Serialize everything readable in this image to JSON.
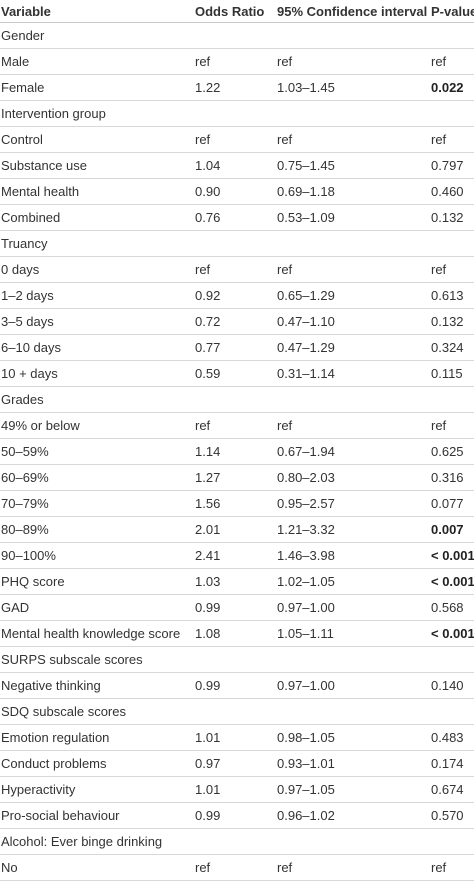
{
  "headers": {
    "variable": "Variable",
    "odds_ratio": "Odds Ratio",
    "ci": "95% Confidence interval",
    "p": "P-value"
  },
  "rows": [
    {
      "type": "section",
      "label": "Gender"
    },
    {
      "type": "data",
      "label": "Male",
      "or": "ref",
      "ci": "ref",
      "p": "ref",
      "p_bold": false
    },
    {
      "type": "data",
      "label": "Female",
      "or": "1.22",
      "ci": "1.03–1.45",
      "p": "0.022",
      "p_bold": true
    },
    {
      "type": "section",
      "label": "Intervention group"
    },
    {
      "type": "data",
      "label": "Control",
      "or": "ref",
      "ci": "ref",
      "p": "ref",
      "p_bold": false
    },
    {
      "type": "data",
      "label": "Substance use",
      "or": "1.04",
      "ci": "0.75–1.45",
      "p": "0.797",
      "p_bold": false
    },
    {
      "type": "data",
      "label": "Mental health",
      "or": "0.90",
      "ci": "0.69–1.18",
      "p": "0.460",
      "p_bold": false
    },
    {
      "type": "data",
      "label": "Combined",
      "or": "0.76",
      "ci": "0.53–1.09",
      "p": "0.132",
      "p_bold": false
    },
    {
      "type": "section",
      "label": "Truancy"
    },
    {
      "type": "data",
      "label": "0 days",
      "or": "ref",
      "ci": "ref",
      "p": "ref",
      "p_bold": false
    },
    {
      "type": "data",
      "label": "1–2 days",
      "or": "0.92",
      "ci": "0.65–1.29",
      "p": "0.613",
      "p_bold": false
    },
    {
      "type": "data",
      "label": "3–5 days",
      "or": "0.72",
      "ci": "0.47–1.10",
      "p": "0.132",
      "p_bold": false
    },
    {
      "type": "data",
      "label": "6–10 days",
      "or": "0.77",
      "ci": "0.47–1.29",
      "p": "0.324",
      "p_bold": false
    },
    {
      "type": "data",
      "label": "10 + days",
      "or": "0.59",
      "ci": "0.31–1.14",
      "p": "0.115",
      "p_bold": false
    },
    {
      "type": "section",
      "label": "Grades"
    },
    {
      "type": "data",
      "label": "49% or below",
      "or": "ref",
      "ci": "ref",
      "p": "ref",
      "p_bold": false
    },
    {
      "type": "data",
      "label": "50–59%",
      "or": "1.14",
      "ci": "0.67–1.94",
      "p": "0.625",
      "p_bold": false
    },
    {
      "type": "data",
      "label": "60–69%",
      "or": "1.27",
      "ci": "0.80–2.03",
      "p": "0.316",
      "p_bold": false
    },
    {
      "type": "data",
      "label": "70–79%",
      "or": "1.56",
      "ci": "0.95–2.57",
      "p": "0.077",
      "p_bold": false
    },
    {
      "type": "data",
      "label": "80–89%",
      "or": "2.01",
      "ci": "1.21–3.32",
      "p": "0.007",
      "p_bold": true
    },
    {
      "type": "data",
      "label": "90–100%",
      "or": "2.41",
      "ci": "1.46–3.98",
      "p": "< 0.001",
      "p_bold": true
    },
    {
      "type": "data",
      "label": "PHQ score",
      "or": "1.03",
      "ci": "1.02–1.05",
      "p": "< 0.001",
      "p_bold": true
    },
    {
      "type": "data",
      "label": "GAD",
      "or": "0.99",
      "ci": "0.97–1.00",
      "p": "0.568",
      "p_bold": false
    },
    {
      "type": "data",
      "label": "Mental health knowledge score",
      "or": "1.08",
      "ci": "1.05–1.11",
      "p": "< 0.001",
      "p_bold": true
    },
    {
      "type": "section",
      "label": "SURPS subscale scores"
    },
    {
      "type": "data",
      "label": "Negative thinking",
      "or": "0.99",
      "ci": "0.97–1.00",
      "p": "0.140",
      "p_bold": false
    },
    {
      "type": "section",
      "label": "SDQ subscale scores"
    },
    {
      "type": "data",
      "label": "Emotion regulation",
      "or": "1.01",
      "ci": "0.98–1.05",
      "p": "0.483",
      "p_bold": false
    },
    {
      "type": "data",
      "label": "Conduct problems",
      "or": "0.97",
      "ci": "0.93–1.01",
      "p": "0.174",
      "p_bold": false
    },
    {
      "type": "data",
      "label": "Hyperactivity",
      "or": "1.01",
      "ci": "0.97–1.05",
      "p": "0.674",
      "p_bold": false
    },
    {
      "type": "data",
      "label": "Pro-social behaviour",
      "or": "0.99",
      "ci": "0.96–1.02",
      "p": "0.570",
      "p_bold": false
    },
    {
      "type": "section",
      "label": "Alcohol: Ever binge drinking"
    },
    {
      "type": "data",
      "label": "No",
      "or": "ref",
      "ci": "ref",
      "p": "ref",
      "p_bold": false
    }
  ]
}
